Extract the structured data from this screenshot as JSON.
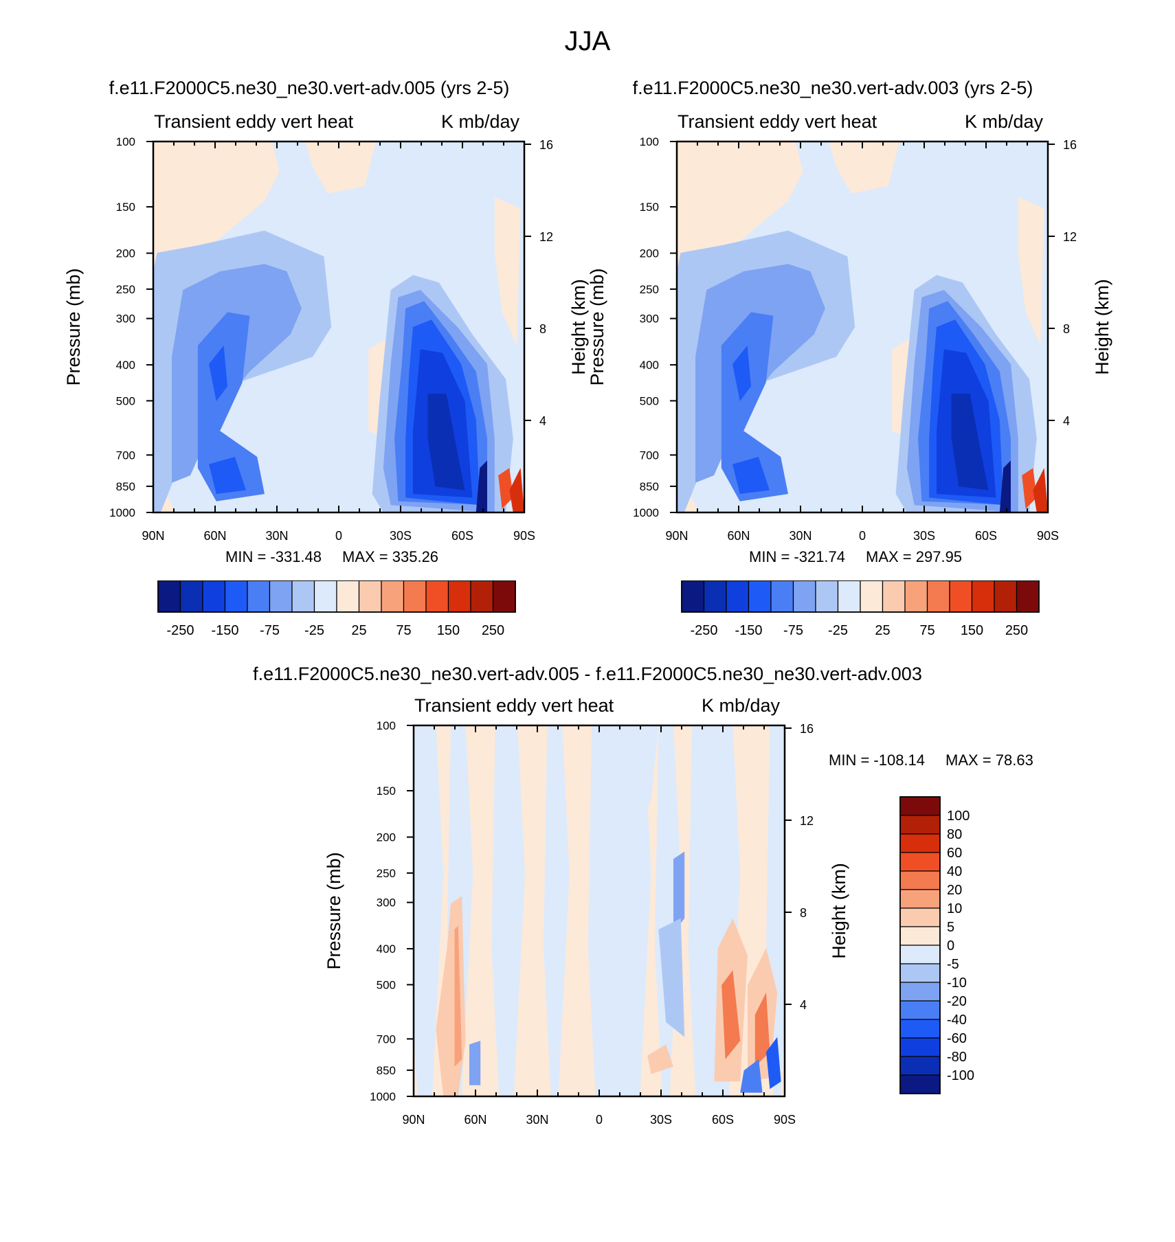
{
  "main_title": "JJA",
  "colors": {
    "main_scale": [
      "#0a1a82",
      "#0a2fb4",
      "#0f3fde",
      "#1e5af5",
      "#4a7ef5",
      "#7ea3f2",
      "#adc7f5",
      "#dceafc",
      "#fde9d8",
      "#fbcbb0",
      "#f8a27b",
      "#f47a4f",
      "#f04f25",
      "#d72f0c",
      "#b22008",
      "#7c0a0a"
    ],
    "diff_scale": [
      "#7c0a0a",
      "#b22008",
      "#d72f0c",
      "#f04f25",
      "#f47a4f",
      "#f8a27b",
      "#fbcbb0",
      "#fde9d8",
      "#dceafc",
      "#adc7f5",
      "#7ea3f2",
      "#4a7ef5",
      "#1e5af5",
      "#0f3fde",
      "#0a2fb4",
      "#0a1a82"
    ]
  },
  "chart_data": [
    {
      "type": "heatmap",
      "title": "f.e11.F2000C5.ne30_ne30.vert-adv.005 (yrs 2-5)",
      "left_subtitle": "Transient eddy vert heat",
      "right_subtitle": "K mb/day",
      "xlabel": "",
      "ylabel": "Pressure (mb)",
      "y2label": "Height (km)",
      "x_ticks": [
        "90N",
        "60N",
        "30N",
        "0",
        "30S",
        "60S",
        "90S"
      ],
      "y_ticks": [
        "100",
        "150",
        "200",
        "250",
        "300",
        "400",
        "500",
        "700",
        "850",
        "1000"
      ],
      "y2_ticks": [
        "16",
        "12",
        "8",
        "4"
      ],
      "min_label": "MIN = -331.48",
      "max_label": "MAX = 335.26",
      "min": -331.48,
      "max": 335.26,
      "colorbar_labels": [
        "-250",
        "-150",
        "-75",
        "-25",
        "25",
        "75",
        "150",
        "250"
      ]
    },
    {
      "type": "heatmap",
      "title": "f.e11.F2000C5.ne30_ne30.vert-adv.003 (yrs 2-5)",
      "left_subtitle": "Transient eddy vert heat",
      "right_subtitle": "K mb/day",
      "xlabel": "",
      "ylabel": "Pressure (mb)",
      "y2label": "Height (km)",
      "x_ticks": [
        "90N",
        "60N",
        "30N",
        "0",
        "30S",
        "60S",
        "90S"
      ],
      "y_ticks": [
        "100",
        "150",
        "200",
        "250",
        "300",
        "400",
        "500",
        "700",
        "850",
        "1000"
      ],
      "y2_ticks": [
        "16",
        "12",
        "8",
        "4"
      ],
      "min_label": "MIN = -321.74",
      "max_label": "MAX = 297.95",
      "min": -321.74,
      "max": 297.95,
      "colorbar_labels": [
        "-250",
        "-150",
        "-75",
        "-25",
        "25",
        "75",
        "150",
        "250"
      ]
    },
    {
      "type": "heatmap",
      "title": "f.e11.F2000C5.ne30_ne30.vert-adv.005 - f.e11.F2000C5.ne30_ne30.vert-adv.003",
      "left_subtitle": "Transient eddy vert heat",
      "right_subtitle": "K mb/day",
      "xlabel": "",
      "ylabel": "Pressure (mb)",
      "y2label": "Height (km)",
      "x_ticks": [
        "90N",
        "60N",
        "30N",
        "0",
        "30S",
        "60S",
        "90S"
      ],
      "y_ticks": [
        "100",
        "150",
        "200",
        "250",
        "300",
        "400",
        "500",
        "700",
        "850",
        "1000"
      ],
      "y2_ticks": [
        "16",
        "12",
        "8",
        "4"
      ],
      "min_label": "MIN = -108.14",
      "max_label": "MAX =  78.63",
      "min": -108.14,
      "max": 78.63,
      "colorbar_labels": [
        "100",
        "80",
        "60",
        "40",
        "20",
        "10",
        "5",
        "0",
        "-5",
        "-10",
        "-20",
        "-40",
        "-60",
        "-80",
        "-100"
      ]
    }
  ]
}
